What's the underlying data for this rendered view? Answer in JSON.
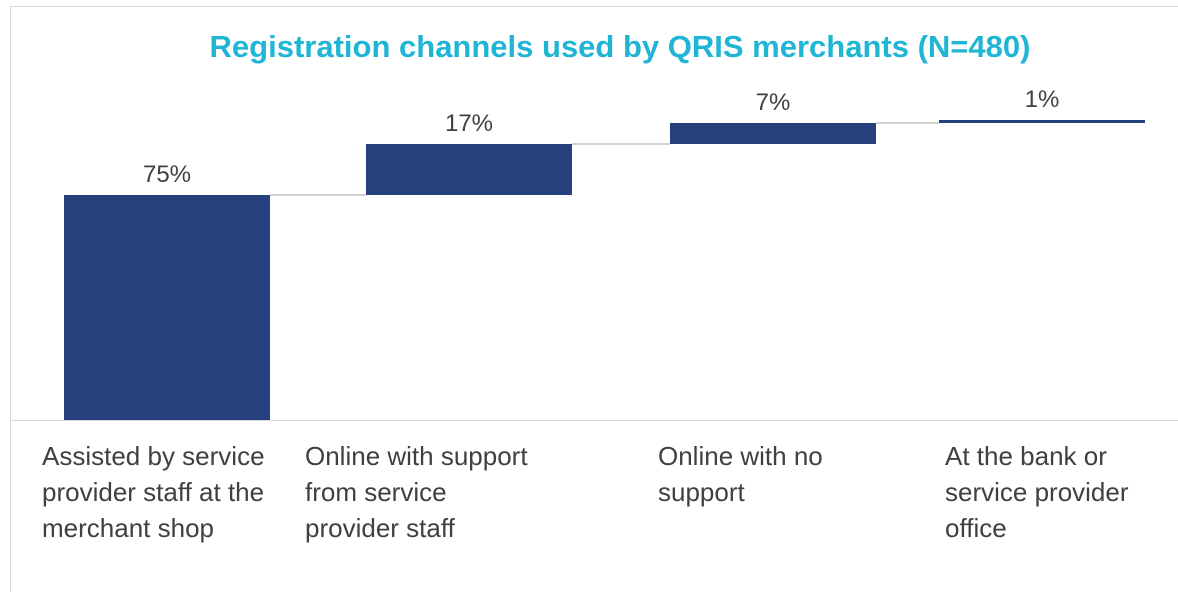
{
  "chart_data": {
    "type": "waterfall",
    "title": "Registration channels used by QRIS merchants (N=480)",
    "categories": [
      "Assisted by service provider staff at the merchant shop",
      "Online with support from service provider staff",
      "Online with no support",
      "At the bank or service provider office"
    ],
    "values": [
      75,
      17,
      7,
      1
    ],
    "value_labels": [
      "75%",
      "17%",
      "7%",
      "1%"
    ],
    "color": "#27417f",
    "ylim": [
      0,
      100
    ]
  }
}
